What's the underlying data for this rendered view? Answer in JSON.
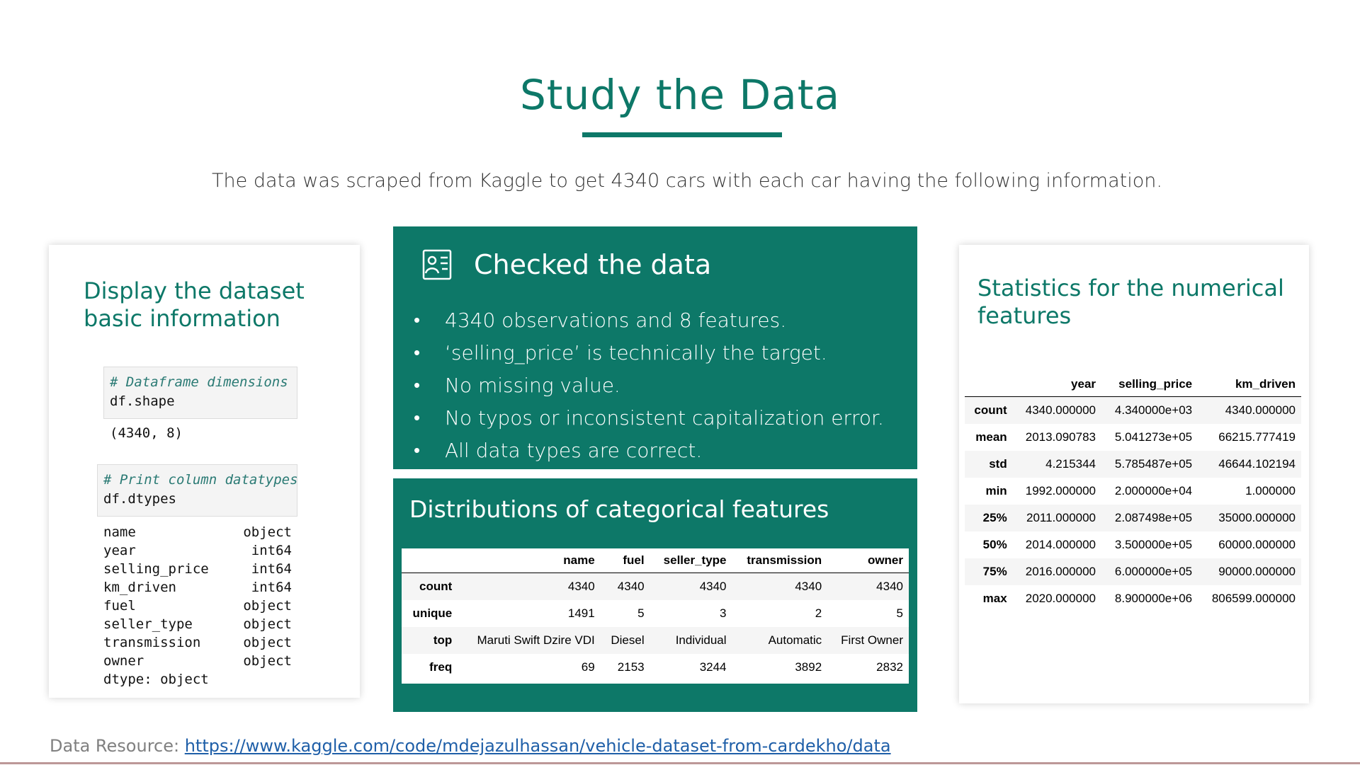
{
  "slide": {
    "title": "Study the Data",
    "subtitle": "The data was scraped from Kaggle to get 4340 cars with each car having the following information."
  },
  "left_card": {
    "heading": "Display the dataset basic information",
    "cell1": {
      "comment": "# Dataframe dimensions",
      "code": "df.shape"
    },
    "shape_output": "(4340, 8)",
    "cell2": {
      "comment": "# Print column datatypes",
      "code": "df.dtypes"
    },
    "dtypes": [
      {
        "name": "name",
        "type": "object"
      },
      {
        "name": "year",
        "type": "int64"
      },
      {
        "name": "selling_price",
        "type": "int64"
      },
      {
        "name": "km_driven",
        "type": "int64"
      },
      {
        "name": "fuel",
        "type": "object"
      },
      {
        "name": "seller_type",
        "type": "object"
      },
      {
        "name": "transmission",
        "type": "object"
      },
      {
        "name": "owner",
        "type": "object"
      }
    ],
    "dtype_footer": "dtype: object"
  },
  "checked": {
    "icon": "checklist-icon",
    "title": "Checked the data",
    "bullets": [
      "4340 observations and 8 features.",
      "‘selling_price’ is technically the target.",
      "No missing value.",
      "No typos or inconsistent capitalization error.",
      "All data types are correct."
    ]
  },
  "distributions": {
    "title": "Distributions of categorical features",
    "columns": [
      "name",
      "fuel",
      "seller_type",
      "transmission",
      "owner"
    ],
    "rows": [
      {
        "label": "count",
        "values": [
          "4340",
          "4340",
          "4340",
          "4340",
          "4340"
        ]
      },
      {
        "label": "unique",
        "values": [
          "1491",
          "5",
          "3",
          "2",
          "5"
        ]
      },
      {
        "label": "top",
        "values": [
          "Maruti Swift Dzire VDI",
          "Diesel",
          "Individual",
          "Automatic",
          "First Owner"
        ]
      },
      {
        "label": "freq",
        "values": [
          "69",
          "2153",
          "3244",
          "3892",
          "2832"
        ]
      }
    ]
  },
  "right_card": {
    "heading": "Statistics for the numerical features",
    "columns": [
      "year",
      "selling_price",
      "km_driven"
    ],
    "rows": [
      {
        "label": "count",
        "values": [
          "4340.000000",
          "4.340000e+03",
          "4340.000000"
        ]
      },
      {
        "label": "mean",
        "values": [
          "2013.090783",
          "5.041273e+05",
          "66215.777419"
        ]
      },
      {
        "label": "std",
        "values": [
          "4.215344",
          "5.785487e+05",
          "46644.102194"
        ]
      },
      {
        "label": "min",
        "values": [
          "1992.000000",
          "2.000000e+04",
          "1.000000"
        ]
      },
      {
        "label": "25%",
        "values": [
          "2011.000000",
          "2.087498e+05",
          "35000.000000"
        ]
      },
      {
        "label": "50%",
        "values": [
          "2014.000000",
          "3.500000e+05",
          "60000.000000"
        ]
      },
      {
        "label": "75%",
        "values": [
          "2016.000000",
          "6.000000e+05",
          "90000.000000"
        ]
      },
      {
        "label": "max",
        "values": [
          "2020.000000",
          "8.900000e+06",
          "806599.000000"
        ]
      }
    ]
  },
  "footer": {
    "label": "Data Resource: ",
    "link_text": "https://www.kaggle.com/code/mdejazulhassan/vehicle-dataset-from-cardekho/data"
  },
  "colors": {
    "accent": "#0d7868",
    "link": "#1f5fa8"
  }
}
